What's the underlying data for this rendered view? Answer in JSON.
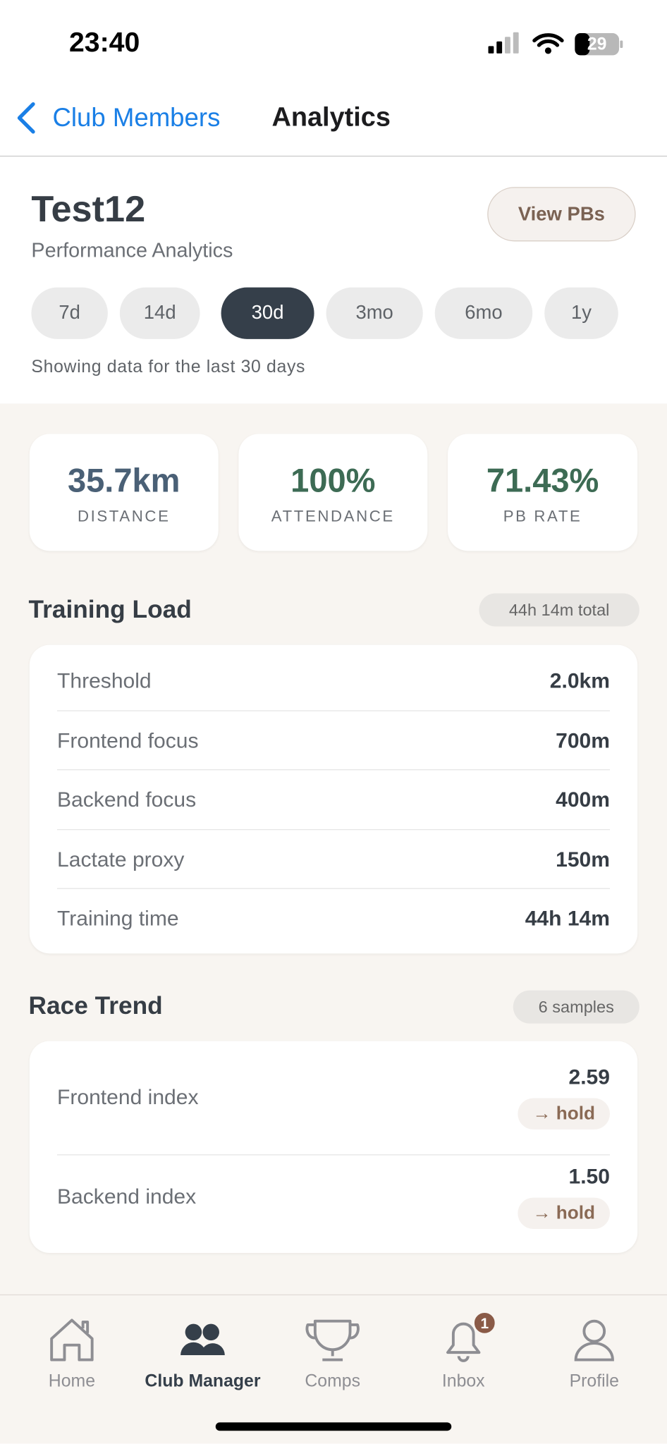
{
  "status": {
    "time": "23:40",
    "battery": "29"
  },
  "nav": {
    "back": "Club Members",
    "title": "Analytics"
  },
  "header": {
    "name": "Test12",
    "subtitle": "Performance Analytics",
    "button": "View PBs",
    "ranges": [
      "7d",
      "14d",
      "30d",
      "3mo",
      "6mo",
      "1y"
    ],
    "note": "Showing data for the last 30 days"
  },
  "stats": [
    {
      "value": "35.7km",
      "label": "DISTANCE"
    },
    {
      "value": "100%",
      "label": "ATTENDANCE"
    },
    {
      "value": "71.43%",
      "label": "PB RATE"
    }
  ],
  "training_load": {
    "title": "Training Load",
    "badge": "44h 14m total",
    "rows": [
      [
        "Threshold",
        "2.0km"
      ],
      [
        "Frontend focus",
        "700m"
      ],
      [
        "Backend focus",
        "400m"
      ],
      [
        "Lactate proxy",
        "150m"
      ],
      [
        "Training time",
        "44h 14m"
      ]
    ]
  },
  "race_trend": {
    "title": "Race Trend",
    "badge": "6 samples",
    "rows": [
      {
        "label": "Frontend index",
        "value": "2.59",
        "trend": "→ hold"
      },
      {
        "label": "Backend index",
        "value": "1.50",
        "trend": "→ hold"
      }
    ]
  },
  "tabbar": {
    "tabs": [
      "Home",
      "Club Manager",
      "Comps",
      "Inbox",
      "Profile"
    ],
    "inbox_badge": "1"
  }
}
